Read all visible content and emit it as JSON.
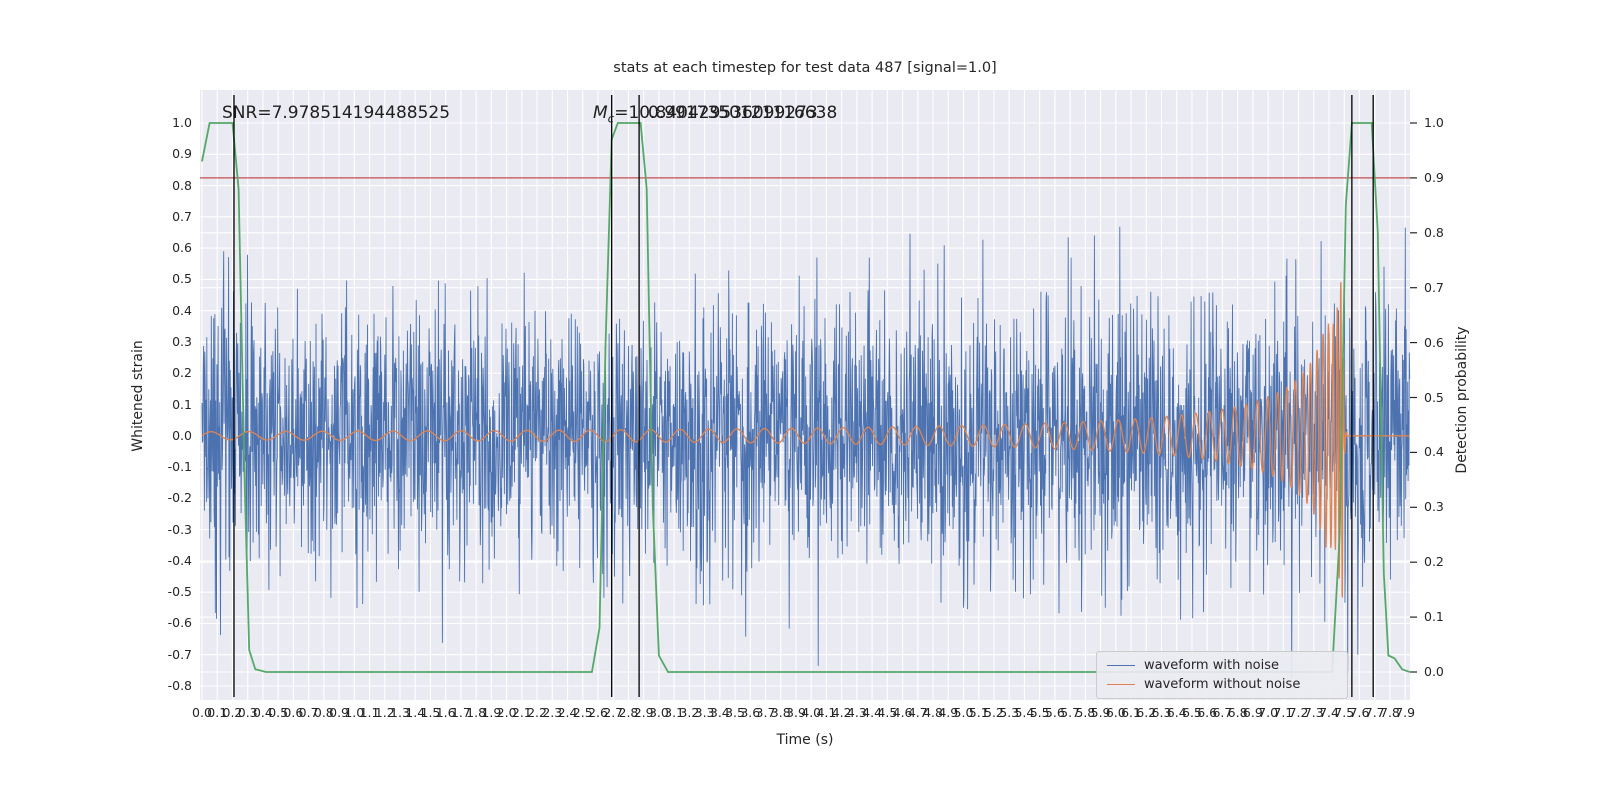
{
  "chart_data": {
    "type": "line",
    "title": "stats at each timestep for test data 487 [signal=1.0]",
    "xlabel": "Time (s)",
    "ylabel_left": "Whitened strain",
    "ylabel_right": "Detection probability",
    "x_range": [
      0.0,
      7.93
    ],
    "ylim_left": [
      -0.8,
      1.0
    ],
    "ylim_right": [
      0.0,
      1.0
    ],
    "grid": true,
    "legend_position": "lower right",
    "plot_bg": "#eaeaf2",
    "grid_color": "#ffffff",
    "annotations": {
      "snr": "SNR=7.978514194488525",
      "mc_prefix": "M",
      "mc_sub": "c",
      "mc_value": "=10.840429536099273",
      "overlap_value": "0.9917350121116638"
    },
    "threshold_line": {
      "axis": "right",
      "value": 0.9,
      "color": "#c44e52"
    },
    "event_vlines": {
      "color": "#000000",
      "times": [
        0.21,
        2.69,
        2.87,
        7.55,
        7.69
      ]
    },
    "detection_probability": {
      "color": "#55a868",
      "points": [
        [
          0,
          0.93
        ],
        [
          0.05,
          1.0
        ],
        [
          0.2,
          1.0
        ],
        [
          0.24,
          0.88
        ],
        [
          0.28,
          0.35
        ],
        [
          0.31,
          0.04
        ],
        [
          0.35,
          0.005
        ],
        [
          0.42,
          0.0
        ],
        [
          2.56,
          0.0
        ],
        [
          2.61,
          0.08
        ],
        [
          2.65,
          0.6
        ],
        [
          2.69,
          0.97
        ],
        [
          2.73,
          1.0
        ],
        [
          2.88,
          1.0
        ],
        [
          2.92,
          0.88
        ],
        [
          2.96,
          0.3
        ],
        [
          3.0,
          0.03
        ],
        [
          3.06,
          0.0
        ],
        [
          7.42,
          0.0
        ],
        [
          7.47,
          0.25
        ],
        [
          7.51,
          0.85
        ],
        [
          7.55,
          1.0
        ],
        [
          7.68,
          1.0
        ],
        [
          7.72,
          0.8
        ],
        [
          7.76,
          0.18
        ],
        [
          7.79,
          0.03
        ],
        [
          7.83,
          0.025
        ],
        [
          7.88,
          0.005
        ],
        [
          7.93,
          0.0
        ]
      ]
    },
    "waveform_with_noise": {
      "color": "#4c72b0",
      "model": "gaussian-noise",
      "sigma": 0.21,
      "clip": [
        -0.78,
        1.0
      ],
      "samples": 3000,
      "seed": 20487,
      "spike_prob": 0.006,
      "spike_mult": 1.9
    },
    "waveform_without_noise": {
      "color": "#dd8452",
      "model": "chirp",
      "t_merger": 7.49,
      "amp_start": 0.013,
      "amp_cap": 0.36,
      "amp_peak": 0.55,
      "f_start_hz": 4.0,
      "post_merger_level": 0.0
    },
    "legend": [
      {
        "label": "waveform with noise",
        "color": "#4c72b0"
      },
      {
        "label": "waveform without noise",
        "color": "#dd8452"
      }
    ],
    "xtick_labels": [
      "0.0",
      "0.1",
      "0.2",
      "0.3",
      "0.4",
      "0.5",
      "0.6",
      "0.7",
      "0.8",
      "0.9",
      "1.0",
      "1.1",
      "1.2",
      "1.3",
      "1.4",
      "1.5",
      "1.6",
      "1.7",
      "1.8",
      "1.9",
      "2.0",
      "2.1",
      "2.2",
      "2.3",
      "2.4",
      "2.5",
      "2.6",
      "2.7",
      "2.8",
      "2.9",
      "3.0",
      "3.1",
      "3.2",
      "3.3",
      "3.4",
      "3.5",
      "3.6",
      "3.7",
      "3.8",
      "3.9",
      "4.0",
      "4.1",
      "4.2",
      "4.3",
      "4.4",
      "4.5",
      "4.6",
      "4.7",
      "4.8",
      "4.9",
      "5.0",
      "5.1",
      "5.2",
      "5.3",
      "5.4",
      "5.5",
      "5.6",
      "5.7",
      "5.8",
      "5.9",
      "6.0",
      "6.1",
      "6.2",
      "6.3",
      "6.4",
      "6.5",
      "6.6",
      "6.7",
      "6.8",
      "6.9",
      "7.0",
      "7.1",
      "7.2",
      "7.3",
      "7.4",
      "7.5",
      "7.6",
      "7.7",
      "7.8",
      "7.9"
    ],
    "ytick_labels_left": [
      "1.0",
      "0.9",
      "0.8",
      "0.7",
      "0.6",
      "0.5",
      "0.4",
      "0.3",
      "0.2",
      "0.1",
      "0.0",
      "-0.1",
      "-0.2",
      "-0.3",
      "-0.4",
      "-0.5",
      "-0.6",
      "-0.7",
      "-0.8"
    ],
    "ytick_labels_right": [
      "1.0",
      "0.9",
      "0.8",
      "0.7",
      "0.6",
      "0.5",
      "0.4",
      "0.3",
      "0.2",
      "0.1",
      "0.0"
    ]
  }
}
